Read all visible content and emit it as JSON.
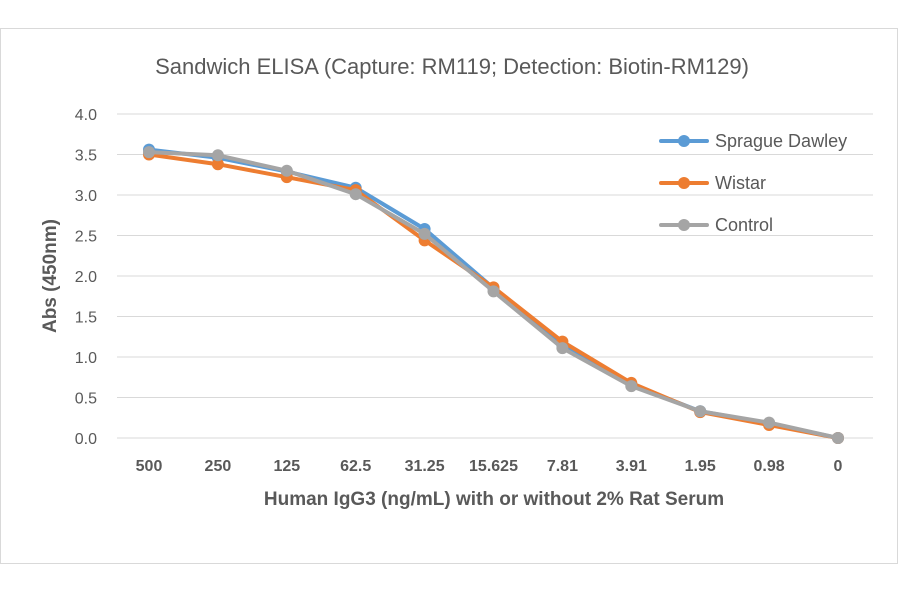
{
  "chart_data": {
    "type": "line",
    "title": "Sandwich ELISA (Capture:  RM119; Detection: Biotin-RM129)",
    "xlabel": "Human IgG3 (ng/mL) with or without 2% Rat Serum",
    "ylabel": "Abs (450nm)",
    "categories": [
      "500",
      "250",
      "125",
      "62.5",
      "31.25",
      "15.625",
      "7.81",
      "3.91",
      "1.95",
      "0.98",
      "0"
    ],
    "yticks": [
      "0.0",
      "0.5",
      "1.0",
      "1.5",
      "2.0",
      "2.5",
      "3.0",
      "3.5",
      "4.0"
    ],
    "ylim": [
      0,
      4
    ],
    "grid": true,
    "legend_position": "top-right",
    "series": [
      {
        "name": "Sprague Dawley",
        "color": "#5b9bd5",
        "values": [
          3.56,
          3.46,
          3.29,
          3.09,
          2.58,
          1.85,
          1.14,
          0.66,
          0.33,
          0.18,
          0.0
        ]
      },
      {
        "name": "Wistar",
        "color": "#ed7d31",
        "values": [
          3.5,
          3.38,
          3.22,
          3.06,
          2.44,
          1.86,
          1.19,
          0.68,
          0.32,
          0.16,
          0.0
        ]
      },
      {
        "name": "Control",
        "color": "#a5a5a5",
        "values": [
          3.53,
          3.49,
          3.3,
          3.01,
          2.52,
          1.81,
          1.11,
          0.64,
          0.33,
          0.19,
          0.0
        ]
      }
    ]
  }
}
